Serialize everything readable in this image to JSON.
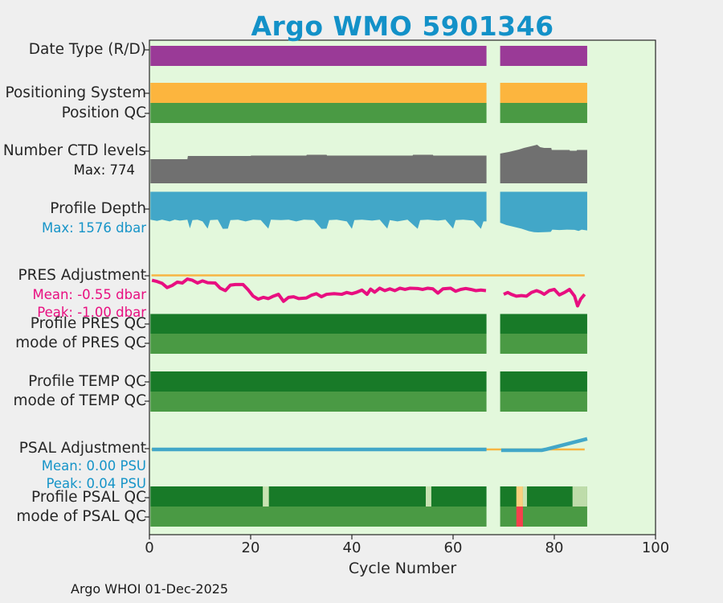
{
  "title": {
    "text": "Argo WMO 5901346",
    "color": "#1391c8"
  },
  "footer": {
    "text": "Argo WHOI 01-Dec-2025"
  },
  "colors": {
    "figure_background": "#efefef",
    "plot_background": "#e3f8dc",
    "axis": "#262626",
    "title_blue": "#1391c8",
    "note_blue": "#1694c8",
    "note_pink": "#e80f80"
  },
  "chart_data": {
    "type": "multi-track status timeline (bands, areas, lines)",
    "title": "Argo WMO 5901346",
    "xlabel": "Cycle Number",
    "xlim": [
      0,
      100
    ],
    "xticks": [
      0,
      20,
      40,
      60,
      80,
      100
    ],
    "grid": "off",
    "segments": [
      [
        0.2,
        66.6
      ],
      [
        69.3,
        86.5
      ]
    ],
    "zero_line_span": [
      0.4,
      86.0
    ],
    "tracks": [
      {
        "id": "date_type",
        "label": "Date Type (R/D)",
        "kind": "band",
        "color": "#9a3a97"
      },
      {
        "id": "positioning",
        "label": "Positioning System",
        "kind": "band",
        "color": "#fcb53e"
      },
      {
        "id": "position_qc",
        "label": "Position QC",
        "kind": "band",
        "color": "#4a9a44"
      },
      {
        "id": "ctd_levels",
        "label": "Number CTD levels",
        "kind": "area-up",
        "color": "#707070",
        "max": 774,
        "note": {
          "text": "Max: 774",
          "color": "#1a1a1a"
        },
        "values": [
          [
            [
              0.2,
              484
            ],
            [
              7.5,
              484
            ],
            [
              7.6,
              548
            ],
            [
              20,
              548
            ],
            [
              20.1,
              556
            ],
            [
              31,
              556
            ],
            [
              31.1,
              573
            ],
            [
              35,
              573
            ],
            [
              35.1,
              556
            ],
            [
              52,
              556
            ],
            [
              52.1,
              573
            ],
            [
              56,
              573
            ],
            [
              56.1,
              556
            ],
            [
              66.6,
              556
            ]
          ],
          [
            [
              69.3,
              597
            ],
            [
              71,
              629
            ],
            [
              73,
              677
            ],
            [
              74,
              710
            ],
            [
              75,
              734
            ],
            [
              76,
              758
            ],
            [
              76.6,
              774
            ],
            [
              77.2,
              726
            ],
            [
              78,
              710
            ],
            [
              79.4,
              710
            ],
            [
              79.5,
              669
            ],
            [
              83,
              669
            ],
            [
              83.1,
              653
            ],
            [
              84.4,
              653
            ],
            [
              84.5,
              669
            ],
            [
              86.5,
              669
            ]
          ]
        ]
      },
      {
        "id": "profile_depth",
        "label": "Profile Depth",
        "kind": "area-down",
        "color": "#42a7c8",
        "max": 1576,
        "note": {
          "text": "Max: 1576 dbar",
          "color": "#1694c8"
        },
        "values": [
          [
            [
              0.2,
              1085
            ],
            [
              1.5,
              1130
            ],
            [
              2.5,
              1085
            ],
            [
              4,
              1150
            ],
            [
              5,
              1085
            ],
            [
              6,
              1120
            ],
            [
              7.5,
              1085
            ],
            [
              8,
              1420
            ],
            [
              8.5,
              1100
            ],
            [
              9.5,
              1085
            ],
            [
              10.5,
              1150
            ],
            [
              11.5,
              1430
            ],
            [
              12,
              1100
            ],
            [
              13.5,
              1085
            ],
            [
              14.5,
              1440
            ],
            [
              15.5,
              1430
            ],
            [
              16,
              1100
            ],
            [
              17.5,
              1085
            ],
            [
              19,
              1150
            ],
            [
              20.5,
              1085
            ],
            [
              22,
              1100
            ],
            [
              23.5,
              1430
            ],
            [
              24,
              1085
            ],
            [
              26,
              1100
            ],
            [
              27.5,
              1085
            ],
            [
              29,
              1150
            ],
            [
              30.5,
              1085
            ],
            [
              32.5,
              1100
            ],
            [
              34,
              1440
            ],
            [
              35,
              1430
            ],
            [
              35.5,
              1100
            ],
            [
              37,
              1085
            ],
            [
              39,
              1150
            ],
            [
              40,
              1440
            ],
            [
              40.5,
              1100
            ],
            [
              42,
              1085
            ],
            [
              44,
              1120
            ],
            [
              45.5,
              1085
            ],
            [
              47,
              1430
            ],
            [
              47.5,
              1100
            ],
            [
              49,
              1150
            ],
            [
              51,
              1085
            ],
            [
              53,
              1440
            ],
            [
              53.5,
              1100
            ],
            [
              55,
              1085
            ],
            [
              57,
              1120
            ],
            [
              58.5,
              1085
            ],
            [
              60,
              1430
            ],
            [
              60.5,
              1100
            ],
            [
              62,
              1085
            ],
            [
              64,
              1120
            ],
            [
              65.5,
              1440
            ],
            [
              66,
              1150
            ],
            [
              66.6,
              1150
            ]
          ],
          [
            [
              69.3,
              1200
            ],
            [
              70.5,
              1290
            ],
            [
              72,
              1360
            ],
            [
              73.5,
              1430
            ],
            [
              75,
              1530
            ],
            [
              76,
              1570
            ],
            [
              76.8,
              1576
            ],
            [
              78.5,
              1565
            ],
            [
              79.3,
              1555
            ],
            [
              79.6,
              1470
            ],
            [
              81,
              1485
            ],
            [
              82.5,
              1470
            ],
            [
              84,
              1480
            ],
            [
              84.8,
              1520
            ],
            [
              85.4,
              1470
            ],
            [
              86.5,
              1500
            ]
          ]
        ]
      },
      {
        "id": "pres_adj",
        "label": "PRES Adjustment",
        "kind": "line",
        "color": "#e80f80",
        "zero_line_color": "#f7b542",
        "units": "dbar",
        "mean": -0.55,
        "peak": -1.0,
        "notes": [
          {
            "text": "Mean: -0.55 dbar",
            "color": "#e80f80"
          },
          {
            "text": "Peak: -1.00 dbar",
            "color": "#e80f80"
          }
        ],
        "series": [
          [
            [
              0.5,
              -0.16
            ],
            [
              1.5,
              -0.2
            ],
            [
              2.5,
              -0.26
            ],
            [
              3.5,
              -0.4
            ],
            [
              4.5,
              -0.33
            ],
            [
              5.5,
              -0.22
            ],
            [
              6.5,
              -0.25
            ],
            [
              7.5,
              -0.12
            ],
            [
              8.5,
              -0.16
            ],
            [
              9.5,
              -0.25
            ],
            [
              10.5,
              -0.18
            ],
            [
              11.5,
              -0.24
            ],
            [
              13,
              -0.25
            ],
            [
              14,
              -0.42
            ],
            [
              15,
              -0.5
            ],
            [
              16,
              -0.32
            ],
            [
              17,
              -0.3
            ],
            [
              18.5,
              -0.3
            ],
            [
              19.5,
              -0.47
            ],
            [
              20.5,
              -0.68
            ],
            [
              21.5,
              -0.78
            ],
            [
              22.5,
              -0.72
            ],
            [
              23.5,
              -0.76
            ],
            [
              24.5,
              -0.68
            ],
            [
              25.5,
              -0.62
            ],
            [
              26.5,
              -0.85
            ],
            [
              27.5,
              -0.72
            ],
            [
              28.5,
              -0.7
            ],
            [
              29.5,
              -0.76
            ],
            [
              31,
              -0.74
            ],
            [
              32,
              -0.65
            ],
            [
              33,
              -0.6
            ],
            [
              34,
              -0.7
            ],
            [
              35,
              -0.62
            ],
            [
              36.5,
              -0.6
            ],
            [
              38,
              -0.62
            ],
            [
              39,
              -0.56
            ],
            [
              40,
              -0.6
            ],
            [
              41,
              -0.55
            ],
            [
              42,
              -0.48
            ],
            [
              43,
              -0.62
            ],
            [
              43.7,
              -0.45
            ],
            [
              44.5,
              -0.55
            ],
            [
              45.5,
              -0.42
            ],
            [
              46.5,
              -0.5
            ],
            [
              47.5,
              -0.44
            ],
            [
              48.5,
              -0.5
            ],
            [
              49.5,
              -0.42
            ],
            [
              50.5,
              -0.46
            ],
            [
              51.5,
              -0.42
            ],
            [
              53,
              -0.43
            ],
            [
              54,
              -0.46
            ],
            [
              55,
              -0.42
            ],
            [
              56,
              -0.44
            ],
            [
              57,
              -0.58
            ],
            [
              58,
              -0.44
            ],
            [
              59.5,
              -0.42
            ],
            [
              60.5,
              -0.52
            ],
            [
              61.5,
              -0.46
            ],
            [
              62.5,
              -0.43
            ],
            [
              63.5,
              -0.46
            ],
            [
              64.5,
              -0.5
            ],
            [
              65.5,
              -0.48
            ],
            [
              66.5,
              -0.5
            ]
          ],
          [
            [
              70,
              -0.62
            ],
            [
              70.8,
              -0.56
            ],
            [
              71.5,
              -0.62
            ],
            [
              72.5,
              -0.68
            ],
            [
              73.5,
              -0.66
            ],
            [
              74.5,
              -0.68
            ],
            [
              75.5,
              -0.56
            ],
            [
              76.5,
              -0.5
            ],
            [
              77.3,
              -0.55
            ],
            [
              78,
              -0.62
            ],
            [
              79,
              -0.5
            ],
            [
              80,
              -0.46
            ],
            [
              81,
              -0.64
            ],
            [
              82,
              -0.56
            ],
            [
              83,
              -0.46
            ],
            [
              84,
              -0.68
            ],
            [
              84.6,
              -1.0
            ],
            [
              85.2,
              -0.78
            ],
            [
              86,
              -0.62
            ]
          ]
        ]
      },
      {
        "id": "profile_pres_qc",
        "label": "Profile PRES QC",
        "kind": "band",
        "color": "#187a28"
      },
      {
        "id": "mode_pres_qc",
        "label": "mode of PRES QC",
        "kind": "band",
        "color": "#4a9a44"
      },
      {
        "id": "profile_temp_qc",
        "label": "Profile TEMP QC",
        "kind": "band",
        "color": "#187a28"
      },
      {
        "id": "mode_temp_qc",
        "label": "mode of TEMP QC",
        "kind": "band",
        "color": "#4a9a44"
      },
      {
        "id": "psal_adj",
        "label": "PSAL Adjustment",
        "kind": "line",
        "color": "#42a7c8",
        "zero_line_color": "#f7b542",
        "units": "PSU",
        "mean": 0.0,
        "peak": 0.04,
        "notes": [
          {
            "text": "Mean: 0.00 PSU",
            "color": "#1694c8"
          },
          {
            "text": "Peak: 0.04 PSU",
            "color": "#1694c8"
          }
        ],
        "series": [
          [
            [
              0.5,
              0
            ],
            [
              66.6,
              0
            ]
          ],
          [
            [
              69.5,
              -0.003
            ],
            [
              77.5,
              -0.003
            ],
            [
              78.5,
              0.001
            ],
            [
              86.5,
              0.04
            ]
          ]
        ]
      },
      {
        "id": "profile_psal_qc",
        "label": "Profile PSAL QC",
        "kind": "band",
        "color": "#187a28",
        "overlays": [
          {
            "from": 22.4,
            "to": 23.6,
            "color": "#c8e3b2"
          },
          {
            "from": 54.6,
            "to": 55.7,
            "color": "#c8e3b2"
          },
          {
            "from": 72.5,
            "to": 73.8,
            "color": "#fbcf7d"
          },
          {
            "from": 73.8,
            "to": 74.6,
            "color": "#c8e3b2"
          },
          {
            "from": 83.6,
            "to": 86.5,
            "color": "#bedcaa"
          }
        ]
      },
      {
        "id": "mode_psal_qc",
        "label": "mode of PSAL QC",
        "kind": "band",
        "color": "#4a9a44",
        "overlays": [
          {
            "from": 72.5,
            "to": 73.8,
            "color": "#f5404c"
          }
        ]
      }
    ]
  }
}
